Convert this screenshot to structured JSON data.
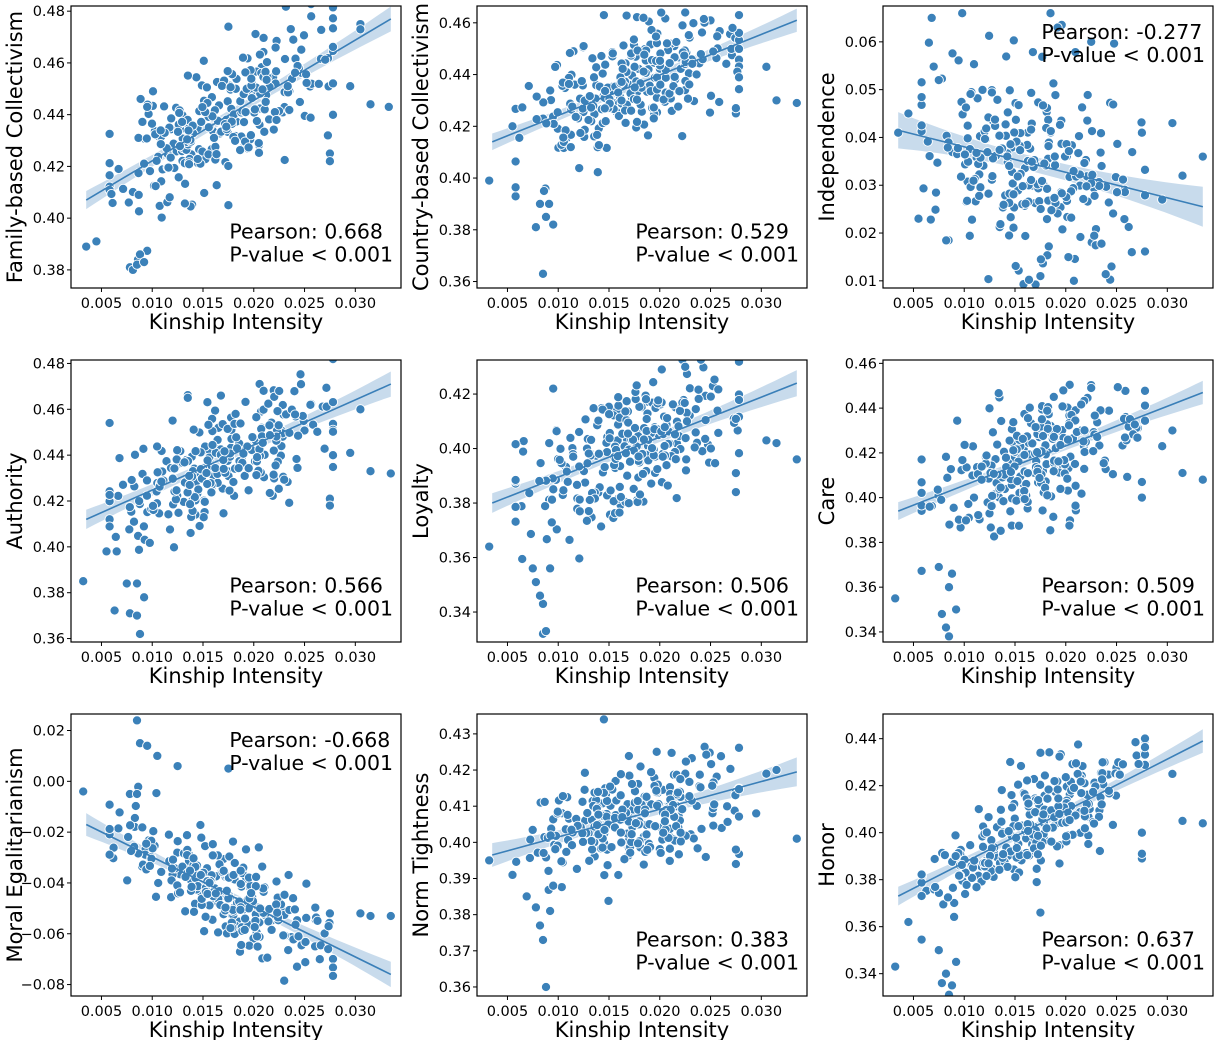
{
  "chart_data": [
    {
      "type": "scatter",
      "xlabel": "Kinship Intensity",
      "ylabel": "Family-based Collectivism",
      "xlim": [
        0.002,
        0.0345
      ],
      "ylim": [
        0.373,
        0.482
      ],
      "xticks": [
        0.005,
        0.01,
        0.015,
        0.02,
        0.025,
        0.03
      ],
      "xtick_labels": [
        "0.005",
        "0.010",
        "0.015",
        "0.020",
        "0.025",
        "0.030"
      ],
      "yticks": [
        0.38,
        0.4,
        0.42,
        0.44,
        0.46,
        0.48
      ],
      "ytick_labels": [
        "0.38",
        "0.40",
        "0.42",
        "0.44",
        "0.46",
        "0.48"
      ],
      "pearson_text": "Pearson: 0.668",
      "pvalue_text": "P-value < 0.001",
      "annotation_position": "bottom-right",
      "regression": {
        "x": [
          0.0035,
          0.0335
        ],
        "y": [
          0.407,
          0.477
        ],
        "ci_halfwidth": [
          0.0035,
          0.0018,
          0.0048
        ]
      },
      "points": {
        "n": 270,
        "x_mean": 0.0168,
        "x_sd": 0.0052,
        "slope": 2.33,
        "intercept": 0.3988,
        "noise_sd": 0.0118,
        "seed": 11
      },
      "outliers": [
        [
          0.0035,
          0.389
        ],
        [
          0.0045,
          0.391
        ],
        [
          0.0078,
          0.381
        ],
        [
          0.0081,
          0.38
        ],
        [
          0.0086,
          0.384
        ],
        [
          0.0088,
          0.386
        ],
        [
          0.0085,
          0.382
        ],
        [
          0.0092,
          0.383
        ],
        [
          0.0305,
          0.475
        ],
        [
          0.0305,
          0.473
        ],
        [
          0.0333,
          0.443
        ],
        [
          0.0315,
          0.444
        ],
        [
          0.0275,
          0.425
        ],
        [
          0.0275,
          0.422
        ],
        [
          0.0273,
          0.432
        ],
        [
          0.0295,
          0.451
        ],
        [
          0.0175,
          0.474
        ],
        [
          0.0095,
          0.443
        ],
        [
          0.0175,
          0.405
        ],
        [
          0.0205,
          0.429
        ],
        [
          0.0192,
          0.441
        ]
      ]
    },
    {
      "type": "scatter",
      "xlabel": "Kinship Intensity",
      "ylabel": "Country-based Collectivism",
      "xlim": [
        0.002,
        0.0345
      ],
      "ylim": [
        0.3575,
        0.4665
      ],
      "xticks": [
        0.005,
        0.01,
        0.015,
        0.02,
        0.025,
        0.03
      ],
      "xtick_labels": [
        "0.005",
        "0.010",
        "0.015",
        "0.020",
        "0.025",
        "0.030"
      ],
      "yticks": [
        0.36,
        0.38,
        0.4,
        0.42,
        0.44,
        0.46
      ],
      "ytick_labels": [
        "0.36",
        "0.38",
        "0.40",
        "0.42",
        "0.44",
        "0.46"
      ],
      "pearson_text": "Pearson: 0.529",
      "pvalue_text": "P-value < 0.001",
      "annotation_position": "bottom-right",
      "regression": {
        "x": [
          0.0035,
          0.0335
        ],
        "y": [
          0.414,
          0.461
        ],
        "ci_halfwidth": [
          0.0032,
          0.0016,
          0.0045
        ]
      },
      "points": {
        "n": 270,
        "x_mean": 0.0168,
        "x_sd": 0.0052,
        "slope": 1.57,
        "intercept": 0.4085,
        "noise_sd": 0.011,
        "seed": 23
      },
      "outliers": [
        [
          0.0032,
          0.399
        ],
        [
          0.0085,
          0.363
        ],
        [
          0.0078,
          0.381
        ],
        [
          0.0088,
          0.385
        ],
        [
          0.0082,
          0.39
        ],
        [
          0.0091,
          0.39
        ],
        [
          0.0086,
          0.395
        ],
        [
          0.0095,
          0.382
        ],
        [
          0.0055,
          0.42
        ],
        [
          0.0335,
          0.429
        ],
        [
          0.0305,
          0.443
        ],
        [
          0.0275,
          0.425
        ],
        [
          0.0275,
          0.427
        ],
        [
          0.0315,
          0.43
        ],
        [
          0.0225,
          0.464
        ],
        [
          0.0145,
          0.463
        ]
      ]
    },
    {
      "type": "scatter",
      "xlabel": "Kinship Intensity",
      "ylabel": "Independence",
      "xlim": [
        0.002,
        0.0345
      ],
      "ylim": [
        0.0085,
        0.0675
      ],
      "xticks": [
        0.005,
        0.01,
        0.015,
        0.02,
        0.025,
        0.03
      ],
      "xtick_labels": [
        "0.005",
        "0.010",
        "0.015",
        "0.020",
        "0.025",
        "0.030"
      ],
      "yticks": [
        0.01,
        0.02,
        0.03,
        0.04,
        0.05,
        0.06
      ],
      "ytick_labels": [
        "0.01",
        "0.02",
        "0.03",
        "0.04",
        "0.05",
        "0.06"
      ],
      "pearson_text": "Pearson: -0.277",
      "pvalue_text": "P-value < 0.001",
      "annotation_position": "top-right",
      "regression": {
        "x": [
          0.0035,
          0.0335
        ],
        "y": [
          0.0415,
          0.0255
        ],
        "ci_halfwidth": [
          0.0038,
          0.0016,
          0.0042
        ]
      },
      "points": {
        "n": 270,
        "x_mean": 0.0168,
        "x_sd": 0.0052,
        "slope": -0.533,
        "intercept": 0.0434,
        "noise_sd": 0.0105,
        "seed": 37
      },
      "outliers": [
        [
          0.0035,
          0.041
        ],
        [
          0.0045,
          0.045
        ],
        [
          0.0068,
          0.065
        ],
        [
          0.0098,
          0.066
        ],
        [
          0.0185,
          0.066
        ],
        [
          0.0192,
          0.063
        ],
        [
          0.0225,
          0.06
        ],
        [
          0.0075,
          0.052
        ],
        [
          0.0335,
          0.036
        ],
        [
          0.0305,
          0.043
        ],
        [
          0.0315,
          0.032
        ],
        [
          0.0295,
          0.027
        ],
        [
          0.0275,
          0.041
        ],
        [
          0.0265,
          0.016
        ],
        [
          0.0208,
          0.01
        ],
        [
          0.0175,
          0.011
        ],
        [
          0.0055,
          0.023
        ],
        [
          0.0245,
          0.013
        ]
      ]
    },
    {
      "type": "scatter",
      "xlabel": "Kinship Intensity",
      "ylabel": "Authority",
      "xlim": [
        0.002,
        0.0345
      ],
      "ylim": [
        0.3585,
        0.4815
      ],
      "xticks": [
        0.005,
        0.01,
        0.015,
        0.02,
        0.025,
        0.03
      ],
      "xtick_labels": [
        "0.005",
        "0.010",
        "0.015",
        "0.020",
        "0.025",
        "0.030"
      ],
      "yticks": [
        0.36,
        0.38,
        0.4,
        0.42,
        0.44,
        0.46,
        0.48
      ],
      "ytick_labels": [
        "0.36",
        "0.38",
        "0.40",
        "0.42",
        "0.44",
        "0.46",
        "0.48"
      ],
      "pearson_text": "Pearson: 0.566",
      "pvalue_text": "P-value < 0.001",
      "annotation_position": "bottom-right",
      "regression": {
        "x": [
          0.0035,
          0.0335
        ],
        "y": [
          0.412,
          0.471
        ],
        "ci_halfwidth": [
          0.0042,
          0.0019,
          0.0055
        ]
      },
      "points": {
        "n": 270,
        "x_mean": 0.0168,
        "x_sd": 0.0052,
        "slope": 1.97,
        "intercept": 0.4051,
        "noise_sd": 0.0135,
        "seed": 41
      },
      "outliers": [
        [
          0.0032,
          0.385
        ],
        [
          0.0055,
          0.398
        ],
        [
          0.0065,
          0.398
        ],
        [
          0.0075,
          0.384
        ],
        [
          0.0078,
          0.371
        ],
        [
          0.0085,
          0.37
        ],
        [
          0.0088,
          0.362
        ],
        [
          0.0092,
          0.378
        ],
        [
          0.0085,
          0.384
        ],
        [
          0.0335,
          0.432
        ],
        [
          0.0315,
          0.433
        ],
        [
          0.0305,
          0.46
        ],
        [
          0.0275,
          0.421
        ],
        [
          0.0275,
          0.418
        ],
        [
          0.0295,
          0.441
        ],
        [
          0.0135,
          0.465
        ],
        [
          0.0225,
          0.468
        ]
      ]
    },
    {
      "type": "scatter",
      "xlabel": "Kinship Intensity",
      "ylabel": "Loyalty",
      "xlim": [
        0.002,
        0.0345
      ],
      "ylim": [
        0.329,
        0.4325
      ],
      "xticks": [
        0.005,
        0.01,
        0.015,
        0.02,
        0.025,
        0.03
      ],
      "xtick_labels": [
        "0.005",
        "0.010",
        "0.015",
        "0.020",
        "0.025",
        "0.030"
      ],
      "yticks": [
        0.34,
        0.36,
        0.38,
        0.4,
        0.42
      ],
      "ytick_labels": [
        "0.34",
        "0.36",
        "0.38",
        "0.40",
        "0.42"
      ],
      "pearson_text": "Pearson: 0.506",
      "pvalue_text": "P-value < 0.001",
      "annotation_position": "bottom-right",
      "regression": {
        "x": [
          0.0035,
          0.0335
        ],
        "y": [
          0.38,
          0.424
        ],
        "ci_halfwidth": [
          0.0036,
          0.0017,
          0.0048
        ]
      },
      "points": {
        "n": 270,
        "x_mean": 0.0168,
        "x_sd": 0.0052,
        "slope": 1.47,
        "intercept": 0.3749,
        "noise_sd": 0.0115,
        "seed": 53
      },
      "outliers": [
        [
          0.0032,
          0.364
        ],
        [
          0.0085,
          0.332
        ],
        [
          0.0088,
          0.333
        ],
        [
          0.0085,
          0.343
        ],
        [
          0.0078,
          0.351
        ],
        [
          0.0082,
          0.346
        ],
        [
          0.0075,
          0.356
        ],
        [
          0.0092,
          0.356
        ],
        [
          0.0335,
          0.396
        ],
        [
          0.0315,
          0.402
        ],
        [
          0.0305,
          0.403
        ],
        [
          0.0275,
          0.391
        ],
        [
          0.0275,
          0.384
        ],
        [
          0.0225,
          0.43
        ],
        [
          0.0095,
          0.422
        ]
      ]
    },
    {
      "type": "scatter",
      "xlabel": "Kinship Intensity",
      "ylabel": "Care",
      "xlim": [
        0.002,
        0.0345
      ],
      "ylim": [
        0.3355,
        0.4615
      ],
      "xticks": [
        0.005,
        0.01,
        0.015,
        0.02,
        0.025,
        0.03
      ],
      "xtick_labels": [
        "0.005",
        "0.010",
        "0.015",
        "0.020",
        "0.025",
        "0.030"
      ],
      "yticks": [
        0.34,
        0.36,
        0.38,
        0.4,
        0.42,
        0.44,
        0.46
      ],
      "ytick_labels": [
        "0.34",
        "0.36",
        "0.38",
        "0.40",
        "0.42",
        "0.44",
        "0.46"
      ],
      "pearson_text": "Pearson: 0.509",
      "pvalue_text": "P-value < 0.001",
      "annotation_position": "bottom-right",
      "regression": {
        "x": [
          0.0035,
          0.0335
        ],
        "y": [
          0.394,
          0.447
        ],
        "ci_halfwidth": [
          0.004,
          0.0018,
          0.0052
        ]
      },
      "points": {
        "n": 270,
        "x_mean": 0.0168,
        "x_sd": 0.0052,
        "slope": 1.77,
        "intercept": 0.3878,
        "noise_sd": 0.013,
        "seed": 67
      },
      "outliers": [
        [
          0.0032,
          0.355
        ],
        [
          0.0085,
          0.338
        ],
        [
          0.0082,
          0.342
        ],
        [
          0.0078,
          0.348
        ],
        [
          0.0092,
          0.35
        ],
        [
          0.0085,
          0.36
        ],
        [
          0.0075,
          0.369
        ],
        [
          0.0088,
          0.366
        ],
        [
          0.0335,
          0.408
        ],
        [
          0.0315,
          0.411
        ],
        [
          0.0305,
          0.43
        ],
        [
          0.0275,
          0.4
        ],
        [
          0.0275,
          0.407
        ],
        [
          0.0225,
          0.449
        ],
        [
          0.0295,
          0.423
        ]
      ]
    },
    {
      "type": "scatter",
      "xlabel": "Kinship Intensity",
      "ylabel": "Moral Egalitarianism",
      "xlim": [
        0.002,
        0.0345
      ],
      "ylim": [
        -0.0845,
        0.0265
      ],
      "xticks": [
        0.005,
        0.01,
        0.015,
        0.02,
        0.025,
        0.03
      ],
      "xtick_labels": [
        "0.005",
        "0.010",
        "0.015",
        "0.020",
        "0.025",
        "0.030"
      ],
      "yticks": [
        -0.08,
        -0.06,
        -0.04,
        -0.02,
        0.0,
        0.02
      ],
      "ytick_labels": [
        "−0.08",
        "−0.06",
        "−0.04",
        "−0.02",
        "0.00",
        "0.02"
      ],
      "pearson_text": "Pearson: -0.668",
      "pvalue_text": "P-value < 0.001",
      "annotation_position": "top-right",
      "regression": {
        "x": [
          0.0035,
          0.0335
        ],
        "y": [
          -0.017,
          -0.076
        ],
        "ci_halfwidth": [
          0.0045,
          0.0015,
          0.005
        ]
      },
      "points": {
        "n": 270,
        "x_mean": 0.0168,
        "x_sd": 0.0052,
        "slope": -1.97,
        "intercept": -0.0101,
        "noise_sd": 0.0085,
        "seed": 79
      },
      "outliers": [
        [
          0.0032,
          -0.004
        ],
        [
          0.0085,
          0.024
        ],
        [
          0.0088,
          0.015
        ],
        [
          0.0095,
          0.014
        ],
        [
          0.0105,
          0.01
        ],
        [
          0.0125,
          0.006
        ],
        [
          0.0175,
          0.005
        ],
        [
          0.0078,
          -0.005
        ],
        [
          0.0085,
          -0.005
        ],
        [
          0.0335,
          -0.053
        ],
        [
          0.0305,
          -0.052
        ],
        [
          0.0315,
          -0.053
        ],
        [
          0.0275,
          -0.052
        ],
        [
          0.0265,
          -0.07
        ],
        [
          0.0205,
          -0.026
        ]
      ]
    },
    {
      "type": "scatter",
      "xlabel": "Kinship Intensity",
      "ylabel": "Norm Tightness",
      "xlim": [
        0.002,
        0.0345
      ],
      "ylim": [
        0.3575,
        0.4355
      ],
      "xticks": [
        0.005,
        0.01,
        0.015,
        0.02,
        0.025,
        0.03
      ],
      "xtick_labels": [
        "0.005",
        "0.010",
        "0.015",
        "0.020",
        "0.025",
        "0.030"
      ],
      "yticks": [
        0.36,
        0.37,
        0.38,
        0.39,
        0.4,
        0.41,
        0.42,
        0.43
      ],
      "ytick_labels": [
        "0.36",
        "0.37",
        "0.38",
        "0.39",
        "0.40",
        "0.41",
        "0.42",
        "0.43"
      ],
      "pearson_text": "Pearson: 0.383",
      "pvalue_text": "P-value < 0.001",
      "annotation_position": "bottom-right",
      "regression": {
        "x": [
          0.0035,
          0.0335
        ],
        "y": [
          0.3965,
          0.4195
        ],
        "ci_halfwidth": [
          0.0033,
          0.0013,
          0.004
        ]
      },
      "points": {
        "n": 270,
        "x_mean": 0.0168,
        "x_sd": 0.0052,
        "slope": 0.767,
        "intercept": 0.3938,
        "noise_sd": 0.0075,
        "seed": 83
      },
      "outliers": [
        [
          0.0032,
          0.395
        ],
        [
          0.0088,
          0.36
        ],
        [
          0.0085,
          0.373
        ],
        [
          0.0082,
          0.377
        ],
        [
          0.0078,
          0.382
        ],
        [
          0.0092,
          0.381
        ],
        [
          0.0095,
          0.388
        ],
        [
          0.0145,
          0.434
        ],
        [
          0.0335,
          0.401
        ],
        [
          0.0315,
          0.42
        ],
        [
          0.0305,
          0.419
        ],
        [
          0.0275,
          0.394
        ],
        [
          0.0275,
          0.398
        ],
        [
          0.0295,
          0.408
        ],
        [
          0.0055,
          0.391
        ]
      ]
    },
    {
      "type": "scatter",
      "xlabel": "Kinship Intensity",
      "ylabel": "Honor",
      "xlim": [
        0.002,
        0.0345
      ],
      "ylim": [
        0.3305,
        0.4505
      ],
      "xticks": [
        0.005,
        0.01,
        0.015,
        0.02,
        0.025,
        0.03
      ],
      "xtick_labels": [
        "0.005",
        "0.010",
        "0.015",
        "0.020",
        "0.025",
        "0.030"
      ],
      "yticks": [
        0.34,
        0.36,
        0.38,
        0.4,
        0.42,
        0.44
      ],
      "ytick_labels": [
        "0.34",
        "0.36",
        "0.38",
        "0.40",
        "0.42",
        "0.44"
      ],
      "pearson_text": "Pearson: 0.637",
      "pvalue_text": "P-value < 0.001",
      "annotation_position": "bottom-right",
      "regression": {
        "x": [
          0.0035,
          0.0335
        ],
        "y": [
          0.373,
          0.439
        ],
        "ci_halfwidth": [
          0.004,
          0.0016,
          0.005
        ]
      },
      "points": {
        "n": 270,
        "x_mean": 0.0168,
        "x_sd": 0.0052,
        "slope": 2.2,
        "intercept": 0.3653,
        "noise_sd": 0.0105,
        "seed": 97
      },
      "outliers": [
        [
          0.0032,
          0.343
        ],
        [
          0.0085,
          0.331
        ],
        [
          0.0088,
          0.335
        ],
        [
          0.0078,
          0.336
        ],
        [
          0.0082,
          0.34
        ],
        [
          0.0092,
          0.345
        ],
        [
          0.0075,
          0.35
        ],
        [
          0.0045,
          0.362
        ],
        [
          0.0335,
          0.404
        ],
        [
          0.0315,
          0.405
        ],
        [
          0.0305,
          0.425
        ],
        [
          0.0275,
          0.389
        ],
        [
          0.0275,
          0.391
        ],
        [
          0.0275,
          0.4
        ],
        [
          0.0175,
          0.366
        ],
        [
          0.0175,
          0.434
        ]
      ]
    }
  ],
  "style": {
    "point_color": "#3b81b9",
    "point_edge_color": "#ffffff",
    "line_color": "#3a7fb8",
    "band_color": "#b5cfe6"
  }
}
